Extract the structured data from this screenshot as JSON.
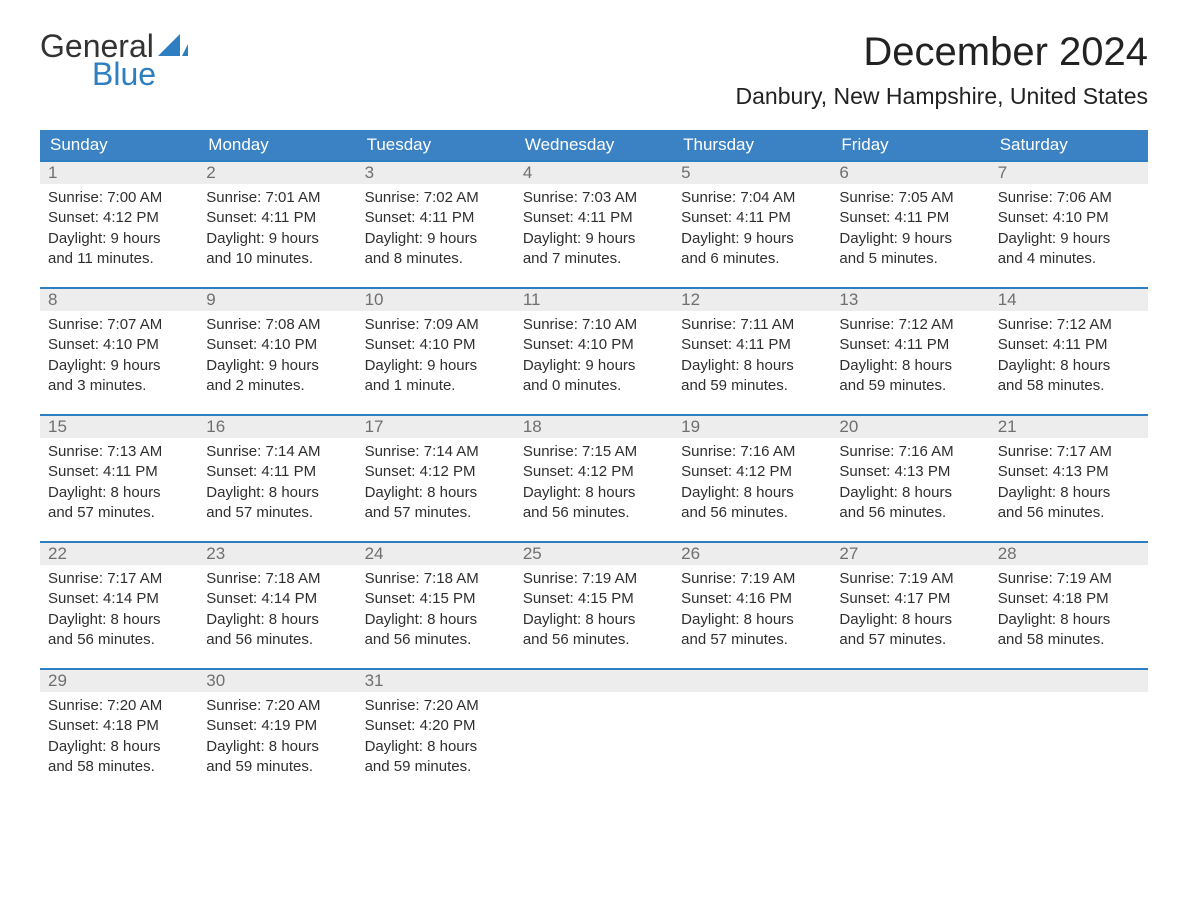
{
  "logo": {
    "word1": "General",
    "word2": "Blue",
    "sail_color": "#2d7fc1",
    "text_dark": "#333333"
  },
  "title": "December 2024",
  "location": "Danbury, New Hampshire, United States",
  "colors": {
    "header_bg": "#3a82c4",
    "header_text": "#ffffff",
    "daynum_bg": "#ededed",
    "daynum_text": "#6f6f6f",
    "rule": "#2d7fc1",
    "body_text": "#2f2f2f",
    "background": "#ffffff"
  },
  "day_names": [
    "Sunday",
    "Monday",
    "Tuesday",
    "Wednesday",
    "Thursday",
    "Friday",
    "Saturday"
  ],
  "weeks": [
    [
      {
        "n": "1",
        "sunrise": "Sunrise: 7:00 AM",
        "sunset": "Sunset: 4:12 PM",
        "d1": "Daylight: 9 hours",
        "d2": "and 11 minutes."
      },
      {
        "n": "2",
        "sunrise": "Sunrise: 7:01 AM",
        "sunset": "Sunset: 4:11 PM",
        "d1": "Daylight: 9 hours",
        "d2": "and 10 minutes."
      },
      {
        "n": "3",
        "sunrise": "Sunrise: 7:02 AM",
        "sunset": "Sunset: 4:11 PM",
        "d1": "Daylight: 9 hours",
        "d2": "and 8 minutes."
      },
      {
        "n": "4",
        "sunrise": "Sunrise: 7:03 AM",
        "sunset": "Sunset: 4:11 PM",
        "d1": "Daylight: 9 hours",
        "d2": "and 7 minutes."
      },
      {
        "n": "5",
        "sunrise": "Sunrise: 7:04 AM",
        "sunset": "Sunset: 4:11 PM",
        "d1": "Daylight: 9 hours",
        "d2": "and 6 minutes."
      },
      {
        "n": "6",
        "sunrise": "Sunrise: 7:05 AM",
        "sunset": "Sunset: 4:11 PM",
        "d1": "Daylight: 9 hours",
        "d2": "and 5 minutes."
      },
      {
        "n": "7",
        "sunrise": "Sunrise: 7:06 AM",
        "sunset": "Sunset: 4:10 PM",
        "d1": "Daylight: 9 hours",
        "d2": "and 4 minutes."
      }
    ],
    [
      {
        "n": "8",
        "sunrise": "Sunrise: 7:07 AM",
        "sunset": "Sunset: 4:10 PM",
        "d1": "Daylight: 9 hours",
        "d2": "and 3 minutes."
      },
      {
        "n": "9",
        "sunrise": "Sunrise: 7:08 AM",
        "sunset": "Sunset: 4:10 PM",
        "d1": "Daylight: 9 hours",
        "d2": "and 2 minutes."
      },
      {
        "n": "10",
        "sunrise": "Sunrise: 7:09 AM",
        "sunset": "Sunset: 4:10 PM",
        "d1": "Daylight: 9 hours",
        "d2": "and 1 minute."
      },
      {
        "n": "11",
        "sunrise": "Sunrise: 7:10 AM",
        "sunset": "Sunset: 4:10 PM",
        "d1": "Daylight: 9 hours",
        "d2": "and 0 minutes."
      },
      {
        "n": "12",
        "sunrise": "Sunrise: 7:11 AM",
        "sunset": "Sunset: 4:11 PM",
        "d1": "Daylight: 8 hours",
        "d2": "and 59 minutes."
      },
      {
        "n": "13",
        "sunrise": "Sunrise: 7:12 AM",
        "sunset": "Sunset: 4:11 PM",
        "d1": "Daylight: 8 hours",
        "d2": "and 59 minutes."
      },
      {
        "n": "14",
        "sunrise": "Sunrise: 7:12 AM",
        "sunset": "Sunset: 4:11 PM",
        "d1": "Daylight: 8 hours",
        "d2": "and 58 minutes."
      }
    ],
    [
      {
        "n": "15",
        "sunrise": "Sunrise: 7:13 AM",
        "sunset": "Sunset: 4:11 PM",
        "d1": "Daylight: 8 hours",
        "d2": "and 57 minutes."
      },
      {
        "n": "16",
        "sunrise": "Sunrise: 7:14 AM",
        "sunset": "Sunset: 4:11 PM",
        "d1": "Daylight: 8 hours",
        "d2": "and 57 minutes."
      },
      {
        "n": "17",
        "sunrise": "Sunrise: 7:14 AM",
        "sunset": "Sunset: 4:12 PM",
        "d1": "Daylight: 8 hours",
        "d2": "and 57 minutes."
      },
      {
        "n": "18",
        "sunrise": "Sunrise: 7:15 AM",
        "sunset": "Sunset: 4:12 PM",
        "d1": "Daylight: 8 hours",
        "d2": "and 56 minutes."
      },
      {
        "n": "19",
        "sunrise": "Sunrise: 7:16 AM",
        "sunset": "Sunset: 4:12 PM",
        "d1": "Daylight: 8 hours",
        "d2": "and 56 minutes."
      },
      {
        "n": "20",
        "sunrise": "Sunrise: 7:16 AM",
        "sunset": "Sunset: 4:13 PM",
        "d1": "Daylight: 8 hours",
        "d2": "and 56 minutes."
      },
      {
        "n": "21",
        "sunrise": "Sunrise: 7:17 AM",
        "sunset": "Sunset: 4:13 PM",
        "d1": "Daylight: 8 hours",
        "d2": "and 56 minutes."
      }
    ],
    [
      {
        "n": "22",
        "sunrise": "Sunrise: 7:17 AM",
        "sunset": "Sunset: 4:14 PM",
        "d1": "Daylight: 8 hours",
        "d2": "and 56 minutes."
      },
      {
        "n": "23",
        "sunrise": "Sunrise: 7:18 AM",
        "sunset": "Sunset: 4:14 PM",
        "d1": "Daylight: 8 hours",
        "d2": "and 56 minutes."
      },
      {
        "n": "24",
        "sunrise": "Sunrise: 7:18 AM",
        "sunset": "Sunset: 4:15 PM",
        "d1": "Daylight: 8 hours",
        "d2": "and 56 minutes."
      },
      {
        "n": "25",
        "sunrise": "Sunrise: 7:19 AM",
        "sunset": "Sunset: 4:15 PM",
        "d1": "Daylight: 8 hours",
        "d2": "and 56 minutes."
      },
      {
        "n": "26",
        "sunrise": "Sunrise: 7:19 AM",
        "sunset": "Sunset: 4:16 PM",
        "d1": "Daylight: 8 hours",
        "d2": "and 57 minutes."
      },
      {
        "n": "27",
        "sunrise": "Sunrise: 7:19 AM",
        "sunset": "Sunset: 4:17 PM",
        "d1": "Daylight: 8 hours",
        "d2": "and 57 minutes."
      },
      {
        "n": "28",
        "sunrise": "Sunrise: 7:19 AM",
        "sunset": "Sunset: 4:18 PM",
        "d1": "Daylight: 8 hours",
        "d2": "and 58 minutes."
      }
    ],
    [
      {
        "n": "29",
        "sunrise": "Sunrise: 7:20 AM",
        "sunset": "Sunset: 4:18 PM",
        "d1": "Daylight: 8 hours",
        "d2": "and 58 minutes."
      },
      {
        "n": "30",
        "sunrise": "Sunrise: 7:20 AM",
        "sunset": "Sunset: 4:19 PM",
        "d1": "Daylight: 8 hours",
        "d2": "and 59 minutes."
      },
      {
        "n": "31",
        "sunrise": "Sunrise: 7:20 AM",
        "sunset": "Sunset: 4:20 PM",
        "d1": "Daylight: 8 hours",
        "d2": "and 59 minutes."
      },
      null,
      null,
      null,
      null
    ]
  ]
}
